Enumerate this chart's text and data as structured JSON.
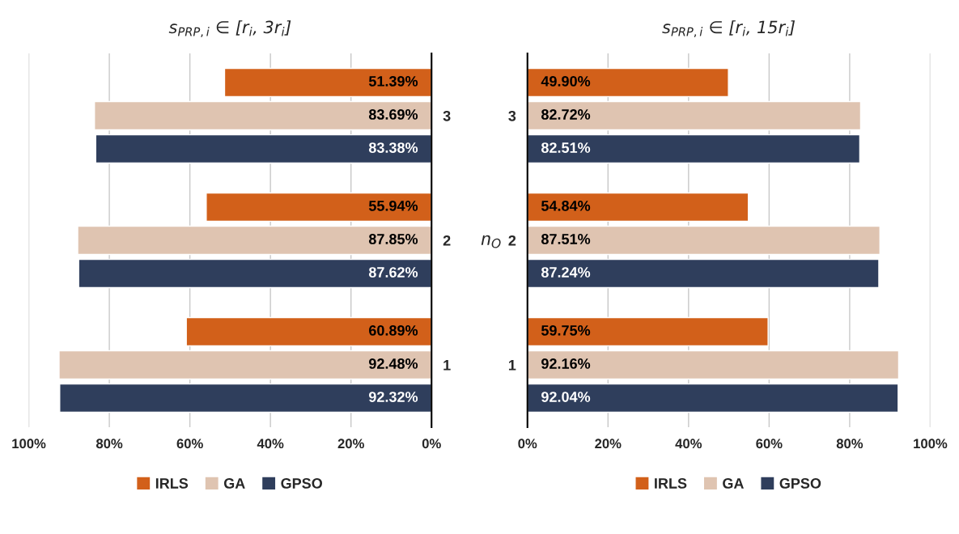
{
  "chart_data": [
    {
      "type": "bar",
      "orientation": "horizontal",
      "title": "s$_{PRP,i}$ ∈ [r$_{i}$, 3r$_{i}$]",
      "ylabel": "n$_{O}$",
      "categories": [
        "3",
        "2",
        "1"
      ],
      "series": [
        {
          "name": "IRLS",
          "color": "#d2601a",
          "values": [
            51.39,
            55.94,
            60.89
          ],
          "value_labels": [
            "51.39%",
            "55.94%",
            "60.89%"
          ]
        },
        {
          "name": "GA",
          "color": "#dfc4b1",
          "values": [
            83.69,
            87.85,
            92.48
          ],
          "value_labels": [
            "83.69%",
            "87.85%",
            "92.48%"
          ]
        },
        {
          "name": "GPSO",
          "color": "#2f3e5c",
          "values": [
            83.38,
            87.62,
            92.32
          ],
          "value_labels": [
            "83.38%",
            "87.62%",
            "92.32%"
          ]
        }
      ],
      "xlim": [
        100,
        0
      ],
      "xticks": [
        {
          "value": 100,
          "label": "100%"
        },
        {
          "value": 80,
          "label": "80%"
        },
        {
          "value": 60,
          "label": "60%"
        },
        {
          "value": 40,
          "label": "40%"
        },
        {
          "value": 20,
          "label": "20%"
        },
        {
          "value": 0,
          "label": "0%"
        }
      ],
      "grid": "x",
      "legend": "bottom"
    },
    {
      "type": "bar",
      "orientation": "horizontal",
      "title": "s$_{PRP,i}$ ∈ [r$_{i}$, 15r$_{i}$]",
      "categories": [
        "3",
        "2",
        "1"
      ],
      "series": [
        {
          "name": "IRLS",
          "color": "#d2601a",
          "values": [
            49.9,
            54.84,
            59.75
          ],
          "value_labels": [
            "49.90%",
            "54.84%",
            "59.75%"
          ]
        },
        {
          "name": "GA",
          "color": "#dfc4b1",
          "values": [
            82.72,
            87.51,
            92.16
          ],
          "value_labels": [
            "82.72%",
            "87.51%",
            "92.16%"
          ]
        },
        {
          "name": "GPSO",
          "color": "#2f3e5c",
          "values": [
            82.51,
            87.24,
            92.04
          ],
          "value_labels": [
            "82.51%",
            "87.24%",
            "92.04%"
          ]
        }
      ],
      "xlim": [
        0,
        100
      ],
      "xticks": [
        {
          "value": 0,
          "label": "0%"
        },
        {
          "value": 20,
          "label": "20%"
        },
        {
          "value": 40,
          "label": "40%"
        },
        {
          "value": 60,
          "label": "60%"
        },
        {
          "value": 80,
          "label": "80%"
        },
        {
          "value": 100,
          "label": "100%"
        }
      ],
      "grid": "x",
      "legend": "bottom"
    }
  ]
}
